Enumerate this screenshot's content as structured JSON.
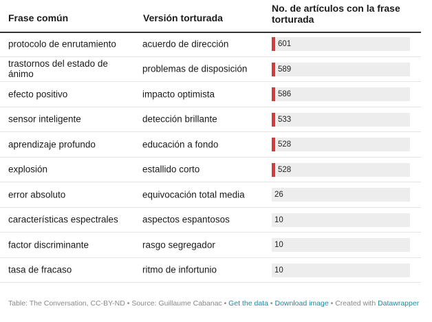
{
  "table": {
    "headers": [
      "Frase común",
      "Versión torturada",
      "No. de artículos con la frase torturada"
    ]
  },
  "chart_data": {
    "type": "table",
    "columns": [
      "Frase común",
      "Versión torturada",
      "No. de artículos con la frase torturada"
    ],
    "max": 601,
    "rows": [
      {
        "common": "protocolo de enrutamiento",
        "tortured": "acuerdo de dirección",
        "value": 601
      },
      {
        "common": "trastornos del estado de ánimo",
        "tortured": "problemas de disposición",
        "value": 589
      },
      {
        "common": "efecto positivo",
        "tortured": "impacto optimista",
        "value": 586
      },
      {
        "common": "sensor inteligente",
        "tortured": "detección brillante",
        "value": 533
      },
      {
        "common": "aprendizaje profundo",
        "tortured": "educación a fondo",
        "value": 528
      },
      {
        "common": "explosión",
        "tortured": "estallido corto",
        "value": 528
      },
      {
        "common": "error absoluto",
        "tortured": "equivocación total media",
        "value": 26
      },
      {
        "common": "características espectrales",
        "tortured": "aspectos espantosos",
        "value": 10
      },
      {
        "common": "factor discriminante",
        "tortured": "rasgo segregador",
        "value": 10
      },
      {
        "common": "tasa de fracaso",
        "tortured": "ritmo de infortunio",
        "value": 10
      }
    ],
    "bar_color": "#d33a3a",
    "track_color": "#ededed"
  },
  "footer": {
    "source": "Table: The Conversation, CC-BY-ND • Source: Guillaume Cabanac • ",
    "get_data": "Get the data",
    "sep": " • ",
    "download": "Download image",
    "created": " • Created with ",
    "tool": "Datawrapper"
  }
}
